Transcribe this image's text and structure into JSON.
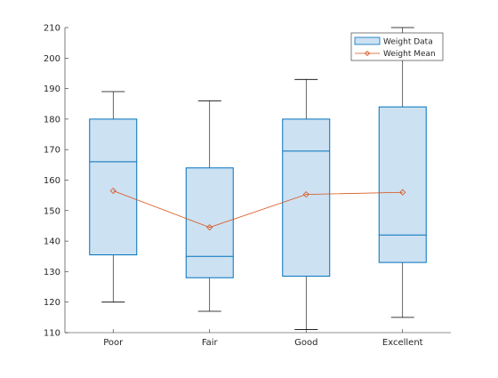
{
  "chart_data": {
    "type": "box",
    "categories": [
      "Poor",
      "Fair",
      "Good",
      "Excellent"
    ],
    "ylim": [
      110,
      210
    ],
    "yticks": [
      110,
      120,
      130,
      140,
      150,
      160,
      170,
      180,
      190,
      200,
      210
    ],
    "grid": false,
    "legend_position": "top-right",
    "series": [
      {
        "name": "Weight Data",
        "type": "box",
        "color": "#0072BD",
        "fill": "#CCE1F2",
        "boxes": [
          {
            "category": "Poor",
            "whisker_low": 120,
            "q1": 135.5,
            "median": 166,
            "q3": 180,
            "whisker_high": 189
          },
          {
            "category": "Fair",
            "whisker_low": 117,
            "q1": 128,
            "median": 135,
            "q3": 164,
            "whisker_high": 186
          },
          {
            "category": "Good",
            "whisker_low": 111,
            "q1": 128.5,
            "median": 169.5,
            "q3": 180,
            "whisker_high": 193
          },
          {
            "category": "Excellent",
            "whisker_low": 115,
            "q1": 133,
            "median": 142,
            "q3": 184,
            "whisker_high": 210
          }
        ]
      },
      {
        "name": "Weight Mean",
        "type": "line",
        "color": "#D95319",
        "marker": "diamond",
        "values": [
          156.5,
          144.5,
          155.3,
          156
        ]
      }
    ]
  }
}
